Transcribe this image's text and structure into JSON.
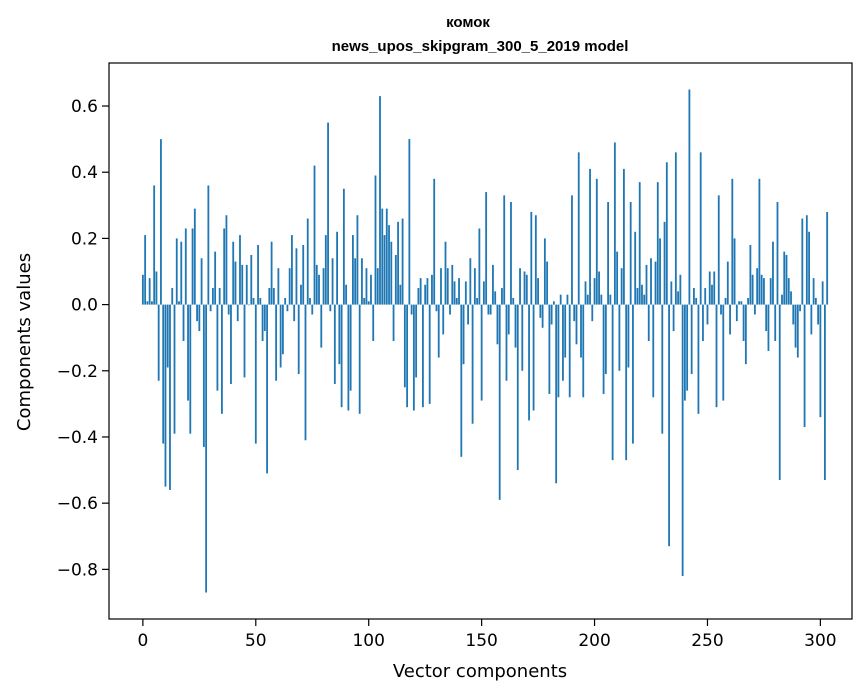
{
  "chart_data": {
    "type": "bar",
    "title_line1": "комок",
    "title_line2": "news_upos_skipgram_300_5_2019 model",
    "xlabel": "Vector components",
    "ylabel": "Components values",
    "xlim": [
      -15,
      314
    ],
    "ylim": [
      -0.95,
      0.73
    ],
    "xticks": [
      0,
      50,
      100,
      150,
      200,
      250,
      300
    ],
    "xtick_labels": [
      "0",
      "50",
      "100",
      "150",
      "200",
      "250",
      "300"
    ],
    "yticks": [
      -0.8,
      -0.6,
      -0.4,
      -0.2,
      0.0,
      0.2,
      0.4,
      0.6
    ],
    "ytick_labels": [
      "−0.8",
      "−0.6",
      "−0.4",
      "−0.2",
      "0.0",
      "0.2",
      "0.4",
      "0.6"
    ],
    "color": "#1f77b4",
    "values": [
      0.09,
      0.21,
      0.01,
      0.08,
      0.01,
      0.36,
      0.1,
      -0.23,
      0.5,
      -0.42,
      -0.55,
      -0.19,
      -0.56,
      0.05,
      -0.39,
      0.2,
      0.01,
      0.19,
      -0.11,
      0.23,
      -0.29,
      -0.39,
      0.23,
      0.29,
      -0.05,
      -0.08,
      0.14,
      -0.43,
      -0.87,
      0.36,
      -0.02,
      0.05,
      0.16,
      -0.26,
      0.05,
      -0.33,
      0.23,
      0.27,
      -0.03,
      -0.24,
      0.19,
      0.13,
      -0.05,
      0.21,
      0.12,
      -0.22,
      0.12,
      0.0,
      0.15,
      0.02,
      -0.42,
      0.18,
      0.02,
      -0.11,
      -0.08,
      -0.51,
      0.05,
      0.19,
      0.05,
      -0.23,
      0.11,
      -0.19,
      -0.15,
      0.02,
      -0.02,
      0.11,
      0.21,
      -0.05,
      0.17,
      -0.21,
      0.06,
      0.18,
      -0.41,
      0.26,
      0.02,
      -0.03,
      0.42,
      0.12,
      0.09,
      -0.13,
      0.11,
      0.21,
      0.55,
      -0.02,
      0.14,
      -0.24,
      0.22,
      -0.18,
      -0.31,
      0.35,
      0.06,
      -0.32,
      -0.26,
      0.21,
      0.14,
      0.27,
      -0.33,
      0.14,
      0.02,
      0.11,
      0.01,
      0.09,
      -0.11,
      0.39,
      0.11,
      0.63,
      0.29,
      0.21,
      0.29,
      0.24,
      0.19,
      -0.11,
      0.15,
      0.25,
      0.06,
      0.26,
      -0.25,
      -0.31,
      0.5,
      -0.03,
      -0.32,
      -0.22,
      0.05,
      0.08,
      -0.31,
      0.06,
      0.08,
      -0.3,
      0.09,
      0.38,
      -0.02,
      -0.16,
      0.11,
      -0.09,
      0.19,
      0.11,
      -0.03,
      0.12,
      0.07,
      0.02,
      0.08,
      -0.46,
      -0.18,
      0.07,
      -0.06,
      0.14,
      -0.36,
      0.11,
      0.02,
      0.23,
      -0.29,
      0.07,
      0.34,
      -0.03,
      -0.03,
      0.12,
      0.04,
      -0.12,
      -0.59,
      0.05,
      0.33,
      -0.23,
      -0.09,
      0.31,
      0.02,
      -0.13,
      -0.5,
      0.11,
      -0.2,
      0.1,
      0.09,
      -0.35,
      0.28,
      -0.32,
      0.27,
      0.08,
      -0.04,
      -0.07,
      0.2,
      0.13,
      -0.27,
      -0.06,
      0.01,
      -0.54,
      -0.28,
      0.03,
      -0.23,
      -0.16,
      0.03,
      -0.28,
      0.33,
      -0.05,
      -0.12,
      0.46,
      -0.16,
      -0.28,
      0.07,
      0.03,
      0.41,
      -0.05,
      0.08,
      0.38,
      0.1,
      0.03,
      -0.27,
      -0.21,
      0.31,
      0.03,
      -0.47,
      0.49,
      0.16,
      -0.2,
      0.11,
      0.41,
      -0.47,
      -0.19,
      0.31,
      -0.42,
      0.22,
      0.05,
      0.37,
      0.06,
      0.03,
      0.12,
      -0.11,
      0.14,
      -0.28,
      0.13,
      0.37,
      0.2,
      -0.39,
      0.25,
      0.43,
      -0.73,
      0.07,
      -0.08,
      0.46,
      0.04,
      0.09,
      -0.82,
      -0.29,
      -0.26,
      0.65,
      -0.21,
      0.05,
      0.02,
      -0.33,
      0.46,
      -0.11,
      0.05,
      -0.06,
      0.1,
      0.06,
      0.1,
      -0.31,
      0.33,
      -0.03,
      -0.29,
      0.02,
      0.13,
      -0.09,
      0.38,
      0.2,
      -0.05,
      0.01,
      0.01,
      -0.11,
      -0.18,
      0.02,
      0.18,
      0.09,
      -0.03,
      0.11,
      0.38,
      0.09,
      0.08,
      -0.08,
      -0.14,
      0.08,
      0.19,
      -0.11,
      0.31,
      -0.53,
      0.03,
      0.16,
      0.15,
      0.08,
      0.04,
      -0.06,
      -0.13,
      -0.16,
      -0.02,
      0.26,
      -0.37,
      0.27,
      0.22,
      -0.09,
      0.08,
      0.02,
      -0.06,
      -0.34,
      0.07,
      -0.53,
      0.28
    ]
  }
}
